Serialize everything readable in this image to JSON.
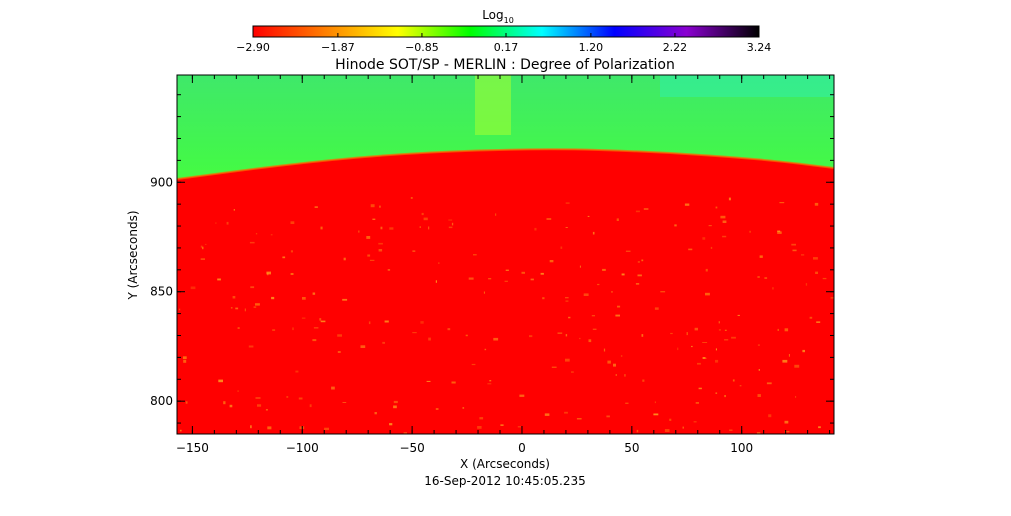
{
  "chart_data": {
    "type": "heatmap",
    "title": "Hinode SOT/SP - MERLIN : Degree of Polarization",
    "xlabel": "X (Arcseconds)",
    "ylabel": "Y (Arcseconds)",
    "xlim": [
      -157,
      142
    ],
    "ylim": [
      785,
      949
    ],
    "x_ticks": [
      -150,
      -100,
      -50,
      0,
      50,
      100
    ],
    "x_tick_labels": [
      "−150",
      "−100",
      "−50",
      "0",
      "50",
      "100"
    ],
    "y_ticks": [
      800,
      850,
      900
    ],
    "y_tick_labels": [
      "800",
      "850",
      "900"
    ],
    "timestamp": "16-Sep-2012 10:45:05.235",
    "colorbar": {
      "label": "Log",
      "label_sub": "10",
      "range": [
        -2.9,
        3.24
      ],
      "ticks": [
        -2.9,
        -1.87,
        -0.85,
        0.17,
        1.2,
        2.22,
        3.24
      ],
      "tick_labels": [
        "−2.90",
        "−1.87",
        "−0.85",
        "0.17",
        "1.20",
        "2.22",
        "3.24"
      ],
      "stops": [
        "#ff0000",
        "#ff7f00",
        "#ffff00",
        "#00ff00",
        "#00ffff",
        "#0000ff",
        "#8a00d0",
        "#000000"
      ]
    },
    "limb": {
      "description_points_x": [
        -157,
        -100,
        -50,
        10,
        60,
        110,
        142
      ],
      "description_points_y": [
        901.5,
        909,
        913.5,
        915.5,
        914,
        910.5,
        906.5
      ]
    },
    "disk_value": -2.9,
    "off_limb_value_low": -1.0,
    "off_limb_value_high": 0.0
  }
}
